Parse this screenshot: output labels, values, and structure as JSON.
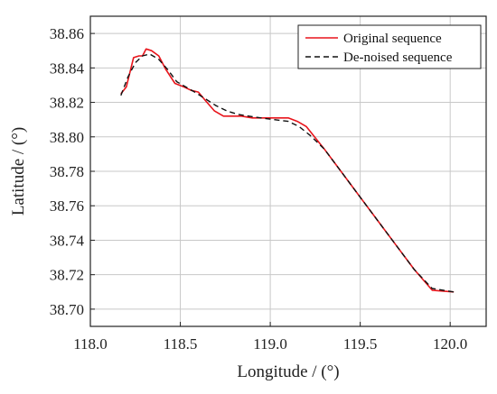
{
  "chart_data": {
    "type": "line",
    "title": "",
    "xlabel": "Longitude / (°)",
    "ylabel": "Latitude / (°)",
    "xlim": [
      118.0,
      120.2
    ],
    "ylim": [
      38.69,
      38.87
    ],
    "x_ticks": [
      118.0,
      118.5,
      119.0,
      119.5,
      120.0
    ],
    "x_tick_labels": [
      "118.0",
      "118.5",
      "119.0",
      "119.5",
      "120.0"
    ],
    "y_ticks": [
      38.7,
      38.72,
      38.74,
      38.76,
      38.78,
      38.8,
      38.82,
      38.84,
      38.86
    ],
    "y_tick_labels": [
      "38.70",
      "38.72",
      "38.74",
      "38.76",
      "38.78",
      "38.80",
      "38.82",
      "38.84",
      "38.86"
    ],
    "grid": true,
    "legend_position": "top-right",
    "series": [
      {
        "name": "Original sequence",
        "color": "#e8141b",
        "style": "solid",
        "x": [
          118.17,
          118.2,
          118.24,
          118.27,
          118.29,
          118.31,
          118.34,
          118.38,
          118.42,
          118.47,
          118.52,
          118.56,
          118.6,
          118.64,
          118.69,
          118.74,
          118.78,
          118.84,
          118.9,
          118.95,
          119.0,
          119.05,
          119.1,
          119.15,
          119.2,
          119.3,
          119.4,
          119.5,
          119.6,
          119.7,
          119.8,
          119.9,
          120.02
        ],
        "y": [
          38.825,
          38.829,
          38.846,
          38.847,
          38.847,
          38.851,
          38.85,
          38.847,
          38.839,
          38.831,
          38.829,
          38.827,
          38.826,
          38.821,
          38.815,
          38.812,
          38.812,
          38.812,
          38.811,
          38.811,
          38.811,
          38.811,
          38.811,
          38.809,
          38.806,
          38.793,
          38.779,
          38.765,
          38.751,
          38.737,
          38.723,
          38.711,
          38.71
        ]
      },
      {
        "name": "De-noised sequence",
        "color": "#111111",
        "style": "dashed",
        "x": [
          118.17,
          118.21,
          118.25,
          118.29,
          118.33,
          118.38,
          118.43,
          118.48,
          118.53,
          118.58,
          118.64,
          118.7,
          118.76,
          118.82,
          118.88,
          118.95,
          119.02,
          119.1,
          119.16,
          119.22,
          119.3,
          119.4,
          119.5,
          119.6,
          119.7,
          119.8,
          119.9,
          120.02
        ],
        "y": [
          38.824,
          38.835,
          38.843,
          38.847,
          38.848,
          38.845,
          38.839,
          38.832,
          38.829,
          38.826,
          38.822,
          38.818,
          38.815,
          38.813,
          38.812,
          38.811,
          38.81,
          38.809,
          38.806,
          38.801,
          38.793,
          38.779,
          38.765,
          38.751,
          38.737,
          38.723,
          38.712,
          38.71
        ]
      }
    ]
  }
}
